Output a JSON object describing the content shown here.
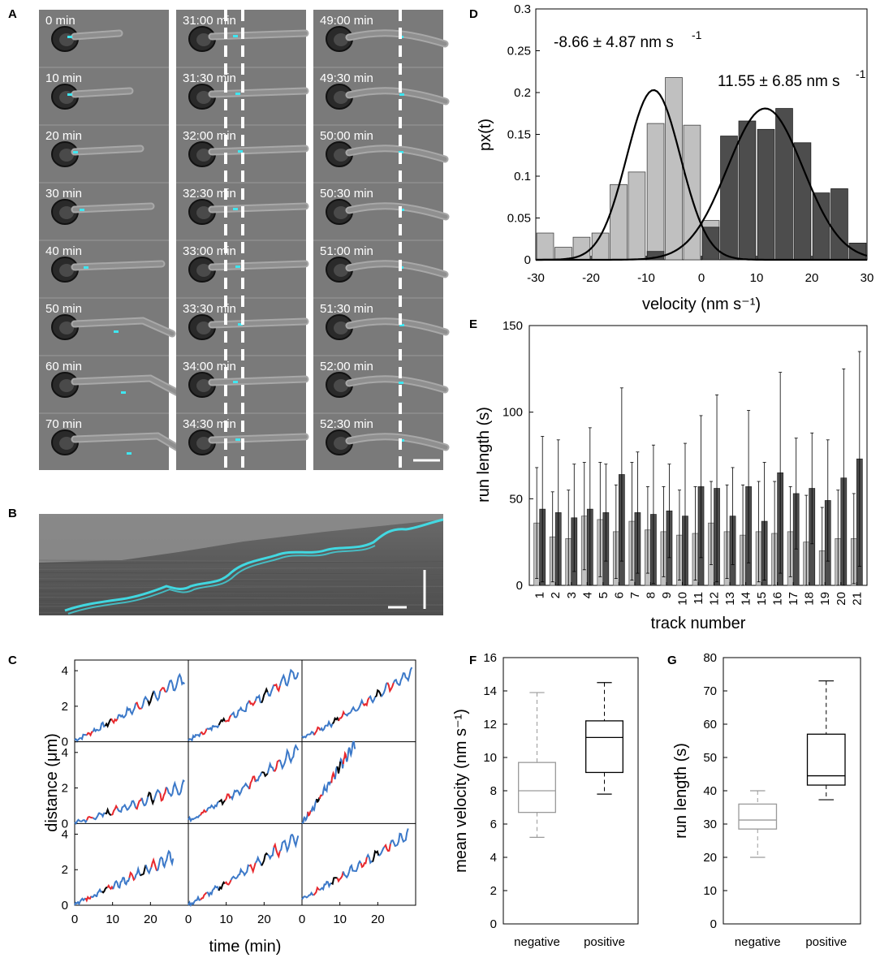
{
  "panels": {
    "A": "A",
    "B": "B",
    "C": "C",
    "D": "D",
    "E": "E",
    "F": "F",
    "G": "G"
  },
  "panel_a": {
    "columns": [
      [
        "0 min",
        "10 min",
        "20 min",
        "30 min",
        "40 min",
        "50 min",
        "60 min",
        "70 min"
      ],
      [
        "31:00 min",
        "31:30 min",
        "32:00 min",
        "32:30 min",
        "33:00 min",
        "33:30 min",
        "34:00 min",
        "34:30 min"
      ],
      [
        "49:00 min",
        "49:30 min",
        "50:00 min",
        "50:30 min",
        "51:00 min",
        "51:30 min",
        "52:00 min",
        "52:30 min"
      ]
    ]
  },
  "colors": {
    "light_bar": "#c0c0c0",
    "dark_bar": "#4d4d4d",
    "cyan": "#3fe6f0",
    "red": "#e8282d",
    "blue": "#3b78c8",
    "black": "#000000",
    "box_neg": "#9a9a9a",
    "box_pos": "#000000"
  },
  "chart_data": [
    {
      "id": "C",
      "type": "line",
      "xlabel": "time (min)",
      "ylabel": "distance (μm)",
      "xlim": [
        0,
        30
      ],
      "ylim": [
        0,
        4.6
      ],
      "xticks": [
        "0",
        "10",
        "20"
      ],
      "yticks": [
        "0",
        "2",
        "4"
      ],
      "series_colors": {
        "steady": "#000000",
        "forward": "#3b78c8",
        "backward": "#e8282d"
      }
    },
    {
      "id": "D",
      "type": "bar",
      "xlabel": "velocity (nm s⁻¹)",
      "ylabel": "px(t)",
      "xlim": [
        -30,
        30
      ],
      "ylim": [
        0,
        0.3
      ],
      "xticks": [
        "-30",
        "-20",
        "-10",
        "0",
        "10",
        "20",
        "30"
      ],
      "yticks": [
        "0",
        "0.05",
        "0.1",
        "0.15",
        "0.2",
        "0.25",
        "0.3"
      ],
      "annotation_negative": "-8.66 ± 4.87 nm s",
      "annotation_positive": "11.55 ± 6.85 nm s",
      "superscript": "-1",
      "bin_width": 3.33,
      "negative": {
        "name": "negative",
        "centers": [
          -28.3,
          -25,
          -21.7,
          -18.3,
          -15,
          -11.7,
          -8.3,
          -5,
          -1.7,
          1.7
        ],
        "values": [
          0.032,
          0.015,
          0.027,
          0.032,
          0.09,
          0.105,
          0.163,
          0.218,
          0.161,
          0.047
        ]
      },
      "positive": {
        "name": "positive",
        "centers": [
          -8.3,
          1.7,
          5,
          8.3,
          11.7,
          15,
          18.3,
          21.7,
          25,
          28.3
        ],
        "values": [
          0.01,
          0.039,
          0.148,
          0.166,
          0.156,
          0.181,
          0.14,
          0.08,
          0.085,
          0.02
        ]
      },
      "fit_negative": {
        "mean": -8.66,
        "sd": 4.87,
        "peak": 0.203
      },
      "fit_positive": {
        "mean": 11.55,
        "sd": 6.85,
        "peak": 0.181
      }
    },
    {
      "id": "E",
      "type": "bar",
      "xlabel": "track number",
      "ylabel": "run length (s)",
      "ylim": [
        0,
        150
      ],
      "yticks": [
        "0",
        "50",
        "100",
        "150"
      ],
      "categories": [
        "1",
        "2",
        "3",
        "4",
        "5",
        "6",
        "7",
        "8",
        "9",
        "10",
        "11",
        "12",
        "13",
        "14",
        "15",
        "16",
        "17",
        "18",
        "19",
        "20",
        "21"
      ],
      "series": [
        {
          "name": "negative",
          "values": [
            36,
            28,
            27,
            40,
            38,
            31,
            37,
            32,
            31,
            29,
            30,
            36,
            31,
            29,
            31,
            30,
            31,
            25,
            20,
            27,
            27
          ],
          "err": [
            32,
            26,
            28,
            31,
            33,
            27,
            34,
            25,
            26,
            26,
            27,
            24,
            27,
            29,
            29,
            30,
            26,
            27,
            25,
            28,
            26
          ]
        },
        {
          "name": "positive",
          "values": [
            44,
            42,
            39,
            44,
            42,
            64,
            42,
            41,
            43,
            40,
            57,
            56,
            40,
            57,
            37,
            65,
            53,
            56,
            49,
            62,
            73
          ],
          "err": [
            42,
            42,
            31,
            47,
            28,
            50,
            35,
            40,
            27,
            42,
            41,
            54,
            28,
            44,
            34,
            58,
            32,
            32,
            35,
            63,
            62
          ]
        }
      ]
    },
    {
      "id": "F",
      "type": "box",
      "ylabel": "mean velocity (nm s⁻¹)",
      "ylim": [
        0,
        16
      ],
      "yticks": [
        "0",
        "2",
        "4",
        "6",
        "8",
        "10",
        "12",
        "14",
        "16"
      ],
      "categories": [
        "negative",
        "positive"
      ],
      "boxes": [
        {
          "name": "negative",
          "min": 5.2,
          "q1": 6.7,
          "median": 8.0,
          "q3": 9.7,
          "max": 13.9
        },
        {
          "name": "positive",
          "min": 7.8,
          "q1": 9.1,
          "median": 11.2,
          "q3": 12.2,
          "max": 14.5
        }
      ]
    },
    {
      "id": "G",
      "type": "box",
      "ylabel": "run length (s)",
      "ylim": [
        0,
        80
      ],
      "yticks": [
        "0",
        "10",
        "20",
        "30",
        "40",
        "50",
        "60",
        "70",
        "80"
      ],
      "categories": [
        "negative",
        "positive"
      ],
      "boxes": [
        {
          "name": "negative",
          "min": 20,
          "q1": 28.5,
          "median": 31.2,
          "q3": 36,
          "max": 40
        },
        {
          "name": "positive",
          "min": 37.3,
          "q1": 41.7,
          "median": 44.5,
          "q3": 57,
          "max": 73
        }
      ]
    }
  ]
}
